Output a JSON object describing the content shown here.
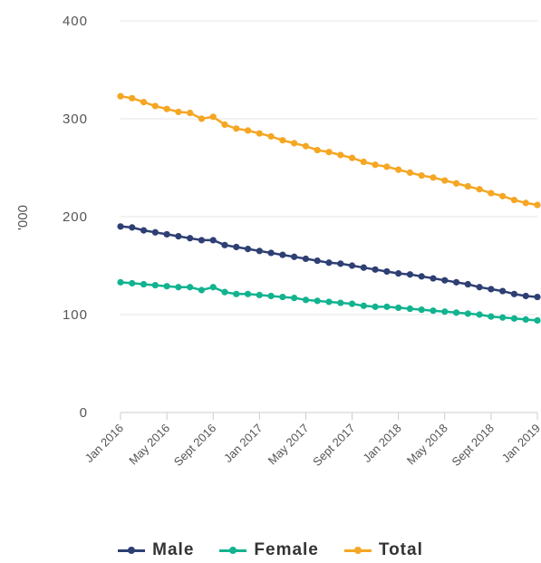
{
  "chart_data": {
    "type": "line",
    "ylabel": "'000",
    "ylim": [
      0,
      400
    ],
    "yticks": [
      "0",
      "100",
      "200",
      "300",
      "400"
    ],
    "xtick_labels": [
      "Jan 2016",
      "May 2016",
      "Sept 2016",
      "Jan 2017",
      "May 2017",
      "Sept 2017",
      "Jan 2018",
      "May 2018",
      "Sept 2018",
      "Jan 2019"
    ],
    "x": [
      "Jan 2016",
      "Feb 2016",
      "Mar 2016",
      "Apr 2016",
      "May 2016",
      "Jun 2016",
      "Jul 2016",
      "Aug 2016",
      "Sept 2016",
      "Oct 2016",
      "Nov 2016",
      "Dec 2016",
      "Jan 2017",
      "Feb 2017",
      "Mar 2017",
      "Apr 2017",
      "May 2017",
      "Jun 2017",
      "Jul 2017",
      "Aug 2017",
      "Sept 2017",
      "Oct 2017",
      "Nov 2017",
      "Dec 2017",
      "Jan 2018",
      "Feb 2018",
      "Mar 2018",
      "Apr 2018",
      "May 2018",
      "Jun 2018",
      "Jul 2018",
      "Aug 2018",
      "Sept 2018",
      "Oct 2018",
      "Nov 2018",
      "Dec 2018",
      "Jan 2019"
    ],
    "series": [
      {
        "name": "Male",
        "color": "#2e3f73",
        "values": [
          190,
          189,
          186,
          184,
          182,
          180,
          178,
          176,
          176,
          171,
          169,
          167,
          165,
          163,
          161,
          159,
          157,
          155,
          153,
          152,
          150,
          148,
          146,
          144,
          142,
          141,
          139,
          137,
          135,
          133,
          131,
          128,
          126,
          124,
          121,
          119,
          118
        ]
      },
      {
        "name": "Female",
        "color": "#12b38f",
        "values": [
          133,
          132,
          131,
          130,
          129,
          128,
          128,
          125,
          128,
          123,
          121,
          121,
          120,
          119,
          118,
          117,
          115,
          114,
          113,
          112,
          111,
          109,
          108,
          108,
          107,
          106,
          105,
          104,
          103,
          102,
          101,
          100,
          98,
          97,
          96,
          95,
          94
        ]
      },
      {
        "name": "Total",
        "color": "#f5a623",
        "values": [
          323,
          321,
          317,
          313,
          310,
          307,
          306,
          300,
          302,
          294,
          290,
          288,
          285,
          282,
          278,
          275,
          272,
          268,
          266,
          263,
          260,
          256,
          253,
          251,
          248,
          245,
          242,
          240,
          237,
          234,
          231,
          228,
          224,
          221,
          217,
          214,
          212
        ]
      }
    ],
    "legend": "bottom",
    "grid": true
  }
}
